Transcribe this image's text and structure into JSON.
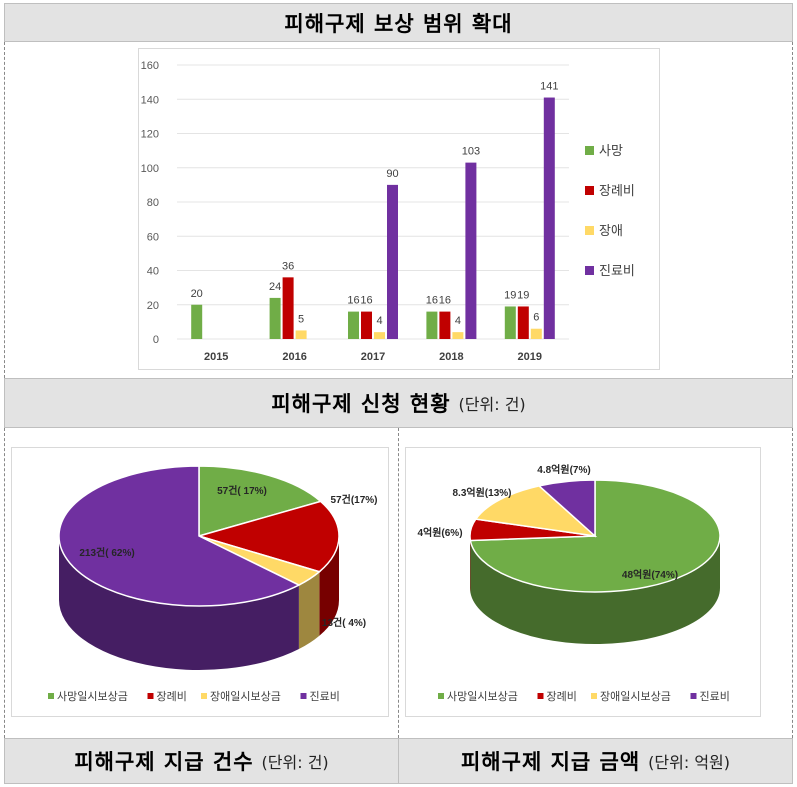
{
  "header": {
    "title": "피해구제 보상 범위 확대"
  },
  "mid_header": {
    "title": "피해구제 신청 현황",
    "unit": "(단위: 건)"
  },
  "bottom_left": {
    "title": "피해구제 지급 건수",
    "unit": "(단위: 건)"
  },
  "bottom_right": {
    "title": "피해구제 지급 금액",
    "unit": "(단위: 억원)"
  },
  "colors": {
    "green": "#70ad47",
    "red": "#c00000",
    "yellow": "#ffd966",
    "purple": "#7030a0"
  },
  "chart_data": [
    {
      "type": "bar",
      "title": "",
      "categories": [
        "2015",
        "2016",
        "2017",
        "2018",
        "2019"
      ],
      "ylim": [
        0,
        160
      ],
      "yticks": [
        0,
        20,
        40,
        60,
        80,
        100,
        120,
        140,
        160
      ],
      "grid": true,
      "legend_position": "right",
      "series": [
        {
          "name": "사망",
          "color": "#70ad47",
          "values": [
            20,
            24,
            16,
            16,
            19
          ],
          "labels": [
            "20",
            "24",
            "16",
            "16",
            "19"
          ]
        },
        {
          "name": "장례비",
          "color": "#c00000",
          "values": [
            null,
            36,
            16,
            16,
            19
          ],
          "labels": [
            "",
            "36",
            "16",
            "16",
            "19"
          ]
        },
        {
          "name": "장애",
          "color": "#ffd966",
          "values": [
            null,
            5,
            4,
            4,
            6
          ],
          "labels": [
            "",
            "5",
            "4",
            "4",
            "6"
          ]
        },
        {
          "name": "진료비",
          "color": "#7030a0",
          "values": [
            null,
            null,
            90,
            103,
            141
          ],
          "labels": [
            "",
            "",
            "90",
            "103",
            "141"
          ]
        }
      ]
    },
    {
      "type": "pie",
      "title": "",
      "legend_position": "bottom",
      "slices": [
        {
          "name": "사망일시보상금",
          "value": 57,
          "label": "57건( 17%)",
          "color": "#70ad47"
        },
        {
          "name": "장례비",
          "value": 57,
          "label": "57건(17%)",
          "color": "#c00000"
        },
        {
          "name": "장애일시보상금",
          "value": 13,
          "label": "13건( 4%)",
          "color": "#ffd966"
        },
        {
          "name": "진료비",
          "value": 213,
          "label": "213건( 62%)",
          "color": "#7030a0"
        }
      ]
    },
    {
      "type": "pie",
      "title": "",
      "legend_position": "bottom",
      "slices": [
        {
          "name": "사망일시보상금",
          "value": 48,
          "label": "48억원(74%)",
          "color": "#70ad47"
        },
        {
          "name": "장례비",
          "value": 4,
          "label": "4억원(6%)",
          "color": "#c00000"
        },
        {
          "name": "장애일시보상금",
          "value": 8.3,
          "label": "8.3억원(13%)",
          "color": "#ffd966"
        },
        {
          "name": "진료비",
          "value": 4.8,
          "label": "4.8억원(7%)",
          "color": "#7030a0"
        }
      ]
    }
  ]
}
